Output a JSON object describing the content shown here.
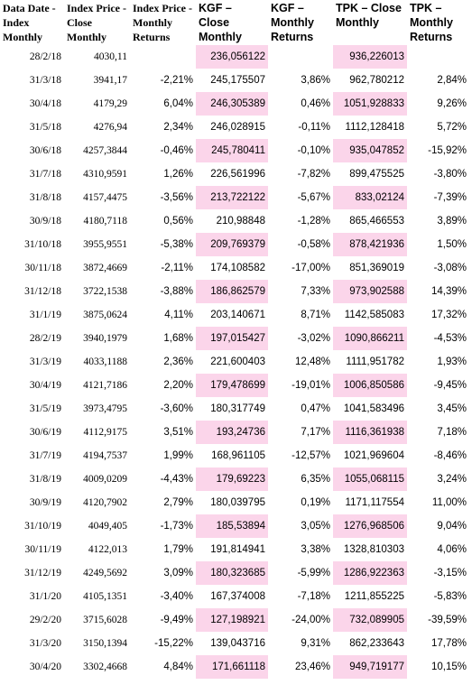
{
  "headers": [
    "Data Date - Index Monthly",
    "Index Price - Close Monthly",
    "Index Price - Monthly Returns",
    "KGF – Close Monthly",
    "KGF – Monthly Returns",
    "TPK – Close Monthly",
    "TPK – Monthly Returns"
  ],
  "rows": [
    {
      "date": "28/2/18",
      "index_close": "4030,11",
      "index_ret": "",
      "kgf_close": "236,056122",
      "kgf_ret": "",
      "tpk_close": "936,226013",
      "tpk_ret": "",
      "highlight": true
    },
    {
      "date": "31/3/18",
      "index_close": "3941,17",
      "index_ret": "-2,21%",
      "kgf_close": "245,175507",
      "kgf_ret": "3,86%",
      "tpk_close": "962,780212",
      "tpk_ret": "2,84%",
      "highlight": false
    },
    {
      "date": "30/4/18",
      "index_close": "4179,29",
      "index_ret": "6,04%",
      "kgf_close": "246,305389",
      "kgf_ret": "0,46%",
      "tpk_close": "1051,928833",
      "tpk_ret": "9,26%",
      "highlight": true
    },
    {
      "date": "31/5/18",
      "index_close": "4276,94",
      "index_ret": "2,34%",
      "kgf_close": "246,028915",
      "kgf_ret": "-0,11%",
      "tpk_close": "1112,128418",
      "tpk_ret": "5,72%",
      "highlight": false
    },
    {
      "date": "30/6/18",
      "index_close": "4257,3844",
      "index_ret": "-0,46%",
      "kgf_close": "245,780411",
      "kgf_ret": "-0,10%",
      "tpk_close": "935,047852",
      "tpk_ret": "-15,92%",
      "highlight": true
    },
    {
      "date": "31/7/18",
      "index_close": "4310,9591",
      "index_ret": "1,26%",
      "kgf_close": "226,561996",
      "kgf_ret": "-7,82%",
      "tpk_close": "899,475525",
      "tpk_ret": "-3,80%",
      "highlight": false
    },
    {
      "date": "31/8/18",
      "index_close": "4157,4475",
      "index_ret": "-3,56%",
      "kgf_close": "213,722122",
      "kgf_ret": "-5,67%",
      "tpk_close": "833,02124",
      "tpk_ret": "-7,39%",
      "highlight": true
    },
    {
      "date": "30/9/18",
      "index_close": "4180,7118",
      "index_ret": "0,56%",
      "kgf_close": "210,98848",
      "kgf_ret": "-1,28%",
      "tpk_close": "865,466553",
      "tpk_ret": "3,89%",
      "highlight": false
    },
    {
      "date": "31/10/18",
      "index_close": "3955,9551",
      "index_ret": "-5,38%",
      "kgf_close": "209,769379",
      "kgf_ret": "-0,58%",
      "tpk_close": "878,421936",
      "tpk_ret": "1,50%",
      "highlight": true
    },
    {
      "date": "30/11/18",
      "index_close": "3872,4669",
      "index_ret": "-2,11%",
      "kgf_close": "174,108582",
      "kgf_ret": "-17,00%",
      "tpk_close": "851,369019",
      "tpk_ret": "-3,08%",
      "highlight": false
    },
    {
      "date": "31/12/18",
      "index_close": "3722,1538",
      "index_ret": "-3,88%",
      "kgf_close": "186,862579",
      "kgf_ret": "7,33%",
      "tpk_close": "973,902588",
      "tpk_ret": "14,39%",
      "highlight": true
    },
    {
      "date": "31/1/19",
      "index_close": "3875,0624",
      "index_ret": "4,11%",
      "kgf_close": "203,140671",
      "kgf_ret": "8,71%",
      "tpk_close": "1142,585083",
      "tpk_ret": "17,32%",
      "highlight": false
    },
    {
      "date": "28/2/19",
      "index_close": "3940,1979",
      "index_ret": "1,68%",
      "kgf_close": "197,015427",
      "kgf_ret": "-3,02%",
      "tpk_close": "1090,866211",
      "tpk_ret": "-4,53%",
      "highlight": true
    },
    {
      "date": "31/3/19",
      "index_close": "4033,1188",
      "index_ret": "2,36%",
      "kgf_close": "221,600403",
      "kgf_ret": "12,48%",
      "tpk_close": "1111,951782",
      "tpk_ret": "1,93%",
      "highlight": false
    },
    {
      "date": "30/4/19",
      "index_close": "4121,7186",
      "index_ret": "2,20%",
      "kgf_close": "179,478699",
      "kgf_ret": "-19,01%",
      "tpk_close": "1006,850586",
      "tpk_ret": "-9,45%",
      "highlight": true
    },
    {
      "date": "31/5/19",
      "index_close": "3973,4795",
      "index_ret": "-3,60%",
      "kgf_close": "180,317749",
      "kgf_ret": "0,47%",
      "tpk_close": "1041,583496",
      "tpk_ret": "3,45%",
      "highlight": false
    },
    {
      "date": "30/6/19",
      "index_close": "4112,9175",
      "index_ret": "3,51%",
      "kgf_close": "193,24736",
      "kgf_ret": "7,17%",
      "tpk_close": "1116,361938",
      "tpk_ret": "7,18%",
      "highlight": true
    },
    {
      "date": "31/7/19",
      "index_close": "4194,7537",
      "index_ret": "1,99%",
      "kgf_close": "168,961105",
      "kgf_ret": "-12,57%",
      "tpk_close": "1021,969604",
      "tpk_ret": "-8,46%",
      "highlight": false
    },
    {
      "date": "31/8/19",
      "index_close": "4009,0209",
      "index_ret": "-4,43%",
      "kgf_close": "179,69223",
      "kgf_ret": "6,35%",
      "tpk_close": "1055,068115",
      "tpk_ret": "3,24%",
      "highlight": true
    },
    {
      "date": "30/9/19",
      "index_close": "4120,7902",
      "index_ret": "2,79%",
      "kgf_close": "180,039795",
      "kgf_ret": "0,19%",
      "tpk_close": "1171,117554",
      "tpk_ret": "11,00%",
      "highlight": false
    },
    {
      "date": "31/10/19",
      "index_close": "4049,405",
      "index_ret": "-1,73%",
      "kgf_close": "185,53894",
      "kgf_ret": "3,05%",
      "tpk_close": "1276,968506",
      "tpk_ret": "9,04%",
      "highlight": true
    },
    {
      "date": "30/11/19",
      "index_close": "4122,013",
      "index_ret": "1,79%",
      "kgf_close": "191,814941",
      "kgf_ret": "3,38%",
      "tpk_close": "1328,810303",
      "tpk_ret": "4,06%",
      "highlight": false
    },
    {
      "date": "31/12/19",
      "index_close": "4249,5692",
      "index_ret": "3,09%",
      "kgf_close": "180,323685",
      "kgf_ret": "-5,99%",
      "tpk_close": "1286,922363",
      "tpk_ret": "-3,15%",
      "highlight": true
    },
    {
      "date": "31/1/20",
      "index_close": "4105,1351",
      "index_ret": "-3,40%",
      "kgf_close": "167,374008",
      "kgf_ret": "-7,18%",
      "tpk_close": "1211,855225",
      "tpk_ret": "-5,83%",
      "highlight": false
    },
    {
      "date": "29/2/20",
      "index_close": "3715,6028",
      "index_ret": "-9,49%",
      "kgf_close": "127,198921",
      "kgf_ret": "-24,00%",
      "tpk_close": "732,089905",
      "tpk_ret": "-39,59%",
      "highlight": true
    },
    {
      "date": "31/3/20",
      "index_close": "3150,1394",
      "index_ret": "-15,22%",
      "kgf_close": "139,043716",
      "kgf_ret": "9,31%",
      "tpk_close": "862,233643",
      "tpk_ret": "17,78%",
      "highlight": false
    },
    {
      "date": "30/4/20",
      "index_close": "3302,4668",
      "index_ret": "4,84%",
      "kgf_close": "171,661118",
      "kgf_ret": "23,46%",
      "tpk_close": "949,719177",
      "tpk_ret": "10,15%",
      "highlight": true
    }
  ],
  "colors": {
    "highlight": "#fbd5ea",
    "background": "#ffffff",
    "text": "#000000"
  }
}
